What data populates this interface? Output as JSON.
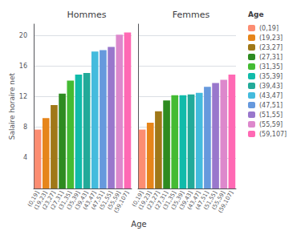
{
  "chart_data": [
    {
      "type": "bar",
      "title": "Hommes",
      "xlabel": "Age",
      "ylabel": "Salaire horaire net",
      "categories": [
        "(0,19]",
        "(19,23]",
        "(23,27]",
        "(27,31]",
        "(31,35]",
        "(35,39]",
        "(39,43]",
        "(43,47]",
        "(47,51]",
        "(51,55]",
        "(55,59]",
        "(59,107]"
      ],
      "values": [
        7.7,
        9.2,
        10.9,
        12.4,
        14.1,
        14.9,
        15.1,
        17.9,
        18.1,
        18.5,
        20.1,
        20.4
      ],
      "colors": [
        "#FC8D72",
        "#E6851A",
        "#A07818",
        "#2E8B20",
        "#44BB33",
        "#11BBAA",
        "#22AA99",
        "#44BBDD",
        "#6699DD",
        "#9977CC",
        "#DD88CC",
        "#FF69B4"
      ],
      "ylim": [
        0,
        21.5
      ],
      "yticks": [
        4,
        8,
        12,
        16,
        20
      ],
      "grid": true,
      "legend": "right",
      "legend_title": "Age"
    },
    {
      "type": "bar",
      "title": "Femmes",
      "categories": [
        "(0,19]",
        "(19,23]",
        "(23,27]",
        "(27,31]",
        "(31,35]",
        "(35,39]",
        "(39,43]",
        "(43,47]",
        "(47,51]",
        "(51,55]",
        "(55,59]",
        "(59,107]"
      ],
      "values": [
        7.7,
        8.6,
        10.1,
        11.5,
        12.2,
        12.2,
        12.3,
        12.5,
        13.3,
        13.8,
        14.2,
        14.9
      ],
      "colors": [
        "#FC8D72",
        "#E6851A",
        "#A07818",
        "#2E8B20",
        "#44BB33",
        "#11BBAA",
        "#22AA99",
        "#44BBDD",
        "#6699DD",
        "#9977CC",
        "#DD88CC",
        "#FF69B4"
      ],
      "ylim": [
        0,
        21.5
      ],
      "yticks": [
        4,
        8,
        12,
        16,
        20
      ],
      "grid": true,
      "tick_labels": "x"
    }
  ]
}
